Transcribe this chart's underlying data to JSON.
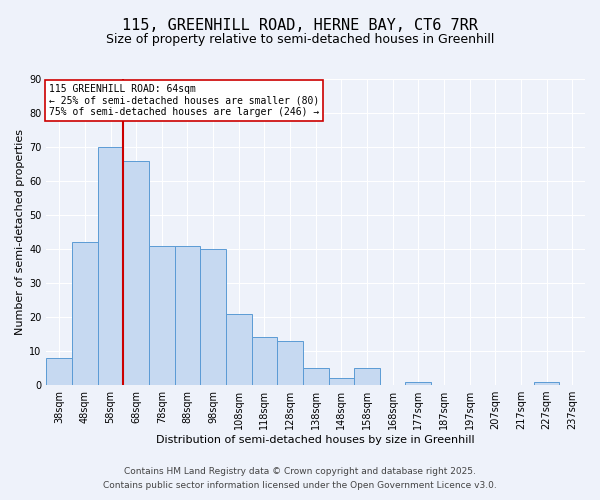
{
  "title": "115, GREENHILL ROAD, HERNE BAY, CT6 7RR",
  "subtitle": "Size of property relative to semi-detached houses in Greenhill",
  "xlabel": "Distribution of semi-detached houses by size in Greenhill",
  "ylabel": "Number of semi-detached properties",
  "bar_labels": [
    "38sqm",
    "48sqm",
    "58sqm",
    "68sqm",
    "78sqm",
    "88sqm",
    "98sqm",
    "108sqm",
    "118sqm",
    "128sqm",
    "138sqm",
    "148sqm",
    "158sqm",
    "168sqm",
    "177sqm",
    "187sqm",
    "197sqm",
    "207sqm",
    "217sqm",
    "227sqm",
    "237sqm"
  ],
  "bar_values": [
    8,
    42,
    70,
    66,
    41,
    41,
    40,
    21,
    14,
    13,
    5,
    2,
    5,
    0,
    1,
    0,
    0,
    0,
    0,
    1,
    0
  ],
  "bar_color": "#c6d9f1",
  "bar_edge_color": "#5b9bd5",
  "ylim": [
    0,
    90
  ],
  "yticks": [
    0,
    10,
    20,
    30,
    40,
    50,
    60,
    70,
    80,
    90
  ],
  "vline_index": 2,
  "vline_color": "#cc0000",
  "annotation_title": "115 GREENHILL ROAD: 64sqm",
  "annotation_line1": "← 25% of semi-detached houses are smaller (80)",
  "annotation_line2": "75% of semi-detached houses are larger (246) →",
  "annotation_box_color": "#ffffff",
  "annotation_box_edge": "#cc0000",
  "footer1": "Contains HM Land Registry data © Crown copyright and database right 2025.",
  "footer2": "Contains public sector information licensed under the Open Government Licence v3.0.",
  "background_color": "#eef2fa",
  "grid_color": "#ffffff",
  "title_fontsize": 11,
  "subtitle_fontsize": 9,
  "axis_label_fontsize": 8,
  "tick_fontsize": 7,
  "annotation_fontsize": 7,
  "footer_fontsize": 6.5
}
